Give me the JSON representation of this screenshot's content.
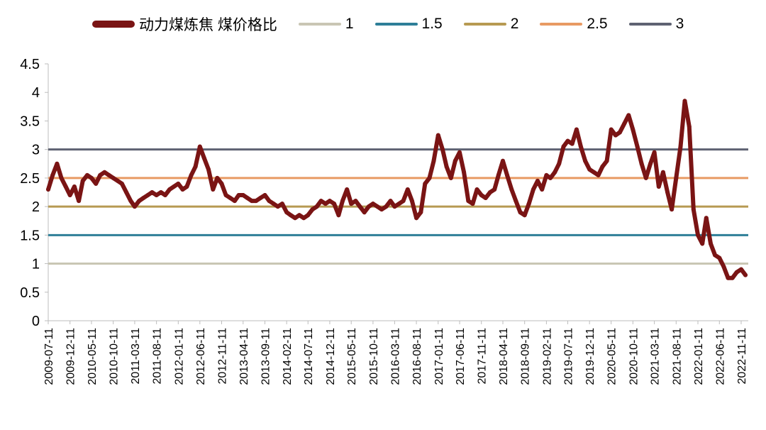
{
  "chart_data": {
    "type": "line",
    "title": "",
    "xlabel": "",
    "ylabel": "",
    "ylim": [
      0,
      4.5
    ],
    "yticks": [
      "0",
      "0.5",
      "1",
      "1.5",
      "2",
      "2.5",
      "3",
      "3.5",
      "4",
      "4.5"
    ],
    "xlim": [
      "2009-07-11",
      "2022-12-31"
    ],
    "xticks": [
      "2009-07-11",
      "2009-12-11",
      "2010-05-11",
      "2010-10-11",
      "2011-03-11",
      "2011-08-11",
      "2012-01-11",
      "2012-06-11",
      "2012-11-11",
      "2013-04-11",
      "2013-09-11",
      "2014-02-11",
      "2014-07-11",
      "2014-12-11",
      "2015-05-11",
      "2015-10-11",
      "2016-03-11",
      "2016-08-11",
      "2017-01-11",
      "2017-06-11",
      "2017-11-11",
      "2018-04-11",
      "2018-09-11",
      "2019-02-11",
      "2019-07-11",
      "2019-12-11",
      "2020-05-11",
      "2020-10-11",
      "2021-03-11",
      "2021-08-11",
      "2022-01-11",
      "2022-06-11",
      "2022-11-11"
    ],
    "grid": false,
    "legend_position": "top",
    "series": [
      {
        "name": "动力煤炼焦 煤价格比",
        "color": "#7a1414",
        "x": [
          "2009-07-11",
          "2009-08-11",
          "2009-09-11",
          "2009-10-11",
          "2009-11-11",
          "2009-12-11",
          "2010-01-11",
          "2010-02-11",
          "2010-03-11",
          "2010-04-11",
          "2010-05-11",
          "2010-06-11",
          "2010-07-11",
          "2010-08-11",
          "2010-09-11",
          "2010-10-11",
          "2010-11-11",
          "2010-12-11",
          "2011-01-11",
          "2011-02-11",
          "2011-03-11",
          "2011-04-11",
          "2011-05-11",
          "2011-06-11",
          "2011-07-11",
          "2011-08-11",
          "2011-09-11",
          "2011-10-11",
          "2011-11-11",
          "2011-12-11",
          "2012-01-11",
          "2012-02-11",
          "2012-03-11",
          "2012-04-11",
          "2012-05-11",
          "2012-06-11",
          "2012-07-11",
          "2012-08-11",
          "2012-09-11",
          "2012-10-11",
          "2012-11-11",
          "2012-12-11",
          "2013-01-11",
          "2013-02-11",
          "2013-03-11",
          "2013-04-11",
          "2013-05-11",
          "2013-06-11",
          "2013-07-11",
          "2013-08-11",
          "2013-09-11",
          "2013-10-11",
          "2013-11-11",
          "2013-12-11",
          "2014-01-11",
          "2014-02-11",
          "2014-03-11",
          "2014-04-11",
          "2014-05-11",
          "2014-06-11",
          "2014-07-11",
          "2014-08-11",
          "2014-09-11",
          "2014-10-11",
          "2014-11-11",
          "2014-12-11",
          "2015-01-11",
          "2015-02-11",
          "2015-03-11",
          "2015-04-11",
          "2015-05-11",
          "2015-06-11",
          "2015-07-11",
          "2015-08-11",
          "2015-09-11",
          "2015-10-11",
          "2015-11-11",
          "2015-12-11",
          "2016-01-11",
          "2016-02-11",
          "2016-03-11",
          "2016-04-11",
          "2016-05-11",
          "2016-06-11",
          "2016-07-11",
          "2016-08-11",
          "2016-09-11",
          "2016-10-11",
          "2016-11-11",
          "2016-12-11",
          "2017-01-11",
          "2017-02-11",
          "2017-03-11",
          "2017-04-11",
          "2017-05-11",
          "2017-06-11",
          "2017-07-11",
          "2017-08-11",
          "2017-09-11",
          "2017-10-11",
          "2017-11-11",
          "2017-12-11",
          "2018-01-11",
          "2018-02-11",
          "2018-03-11",
          "2018-04-11",
          "2018-05-11",
          "2018-06-11",
          "2018-07-11",
          "2018-08-11",
          "2018-09-11",
          "2018-10-11",
          "2018-11-11",
          "2018-12-11",
          "2019-01-11",
          "2019-02-11",
          "2019-03-11",
          "2019-04-11",
          "2019-05-11",
          "2019-06-11",
          "2019-07-11",
          "2019-08-11",
          "2019-09-11",
          "2019-10-11",
          "2019-11-11",
          "2019-12-11",
          "2020-01-11",
          "2020-02-11",
          "2020-03-11",
          "2020-04-11",
          "2020-05-11",
          "2020-06-11",
          "2020-07-11",
          "2020-08-11",
          "2020-09-11",
          "2020-10-11",
          "2020-11-11",
          "2020-12-11",
          "2021-01-11",
          "2021-02-11",
          "2021-03-11",
          "2021-04-11",
          "2021-05-11",
          "2021-06-11",
          "2021-07-11",
          "2021-08-11",
          "2021-09-11",
          "2021-10-11",
          "2021-11-11",
          "2021-12-11",
          "2022-01-11",
          "2022-02-11",
          "2022-03-11",
          "2022-04-11",
          "2022-05-11",
          "2022-06-11",
          "2022-07-11",
          "2022-08-11",
          "2022-09-11",
          "2022-10-11",
          "2022-11-11",
          "2022-12-11"
        ],
        "values": [
          2.3,
          2.55,
          2.75,
          2.5,
          2.35,
          2.2,
          2.35,
          2.1,
          2.45,
          2.55,
          2.5,
          2.4,
          2.55,
          2.6,
          2.55,
          2.5,
          2.45,
          2.4,
          2.25,
          2.1,
          2.0,
          2.1,
          2.15,
          2.2,
          2.25,
          2.2,
          2.25,
          2.2,
          2.3,
          2.35,
          2.4,
          2.3,
          2.35,
          2.55,
          2.7,
          3.05,
          2.85,
          2.65,
          2.3,
          2.5,
          2.4,
          2.2,
          2.15,
          2.1,
          2.2,
          2.2,
          2.15,
          2.1,
          2.1,
          2.15,
          2.2,
          2.1,
          2.05,
          2.0,
          2.05,
          1.9,
          1.85,
          1.8,
          1.85,
          1.8,
          1.85,
          1.95,
          2.0,
          2.1,
          2.05,
          2.1,
          2.05,
          1.85,
          2.1,
          2.3,
          2.05,
          2.1,
          2.0,
          1.9,
          2.0,
          2.05,
          2.0,
          1.95,
          2.0,
          2.1,
          2.0,
          2.05,
          2.1,
          2.3,
          2.1,
          1.8,
          1.9,
          2.4,
          2.5,
          2.8,
          3.25,
          3.0,
          2.7,
          2.5,
          2.8,
          2.95,
          2.6,
          2.1,
          2.05,
          2.3,
          2.2,
          2.15,
          2.25,
          2.3,
          2.55,
          2.8,
          2.55,
          2.3,
          2.1,
          1.9,
          1.85,
          2.05,
          2.3,
          2.45,
          2.3,
          2.55,
          2.5,
          2.6,
          2.75,
          3.05,
          3.15,
          3.1,
          3.35,
          3.05,
          2.8,
          2.65,
          2.6,
          2.55,
          2.7,
          2.8,
          3.35,
          3.25,
          3.3,
          3.45,
          3.6,
          3.35,
          3.05,
          2.75,
          2.5,
          2.75,
          2.95,
          2.35,
          2.6,
          2.25,
          1.95,
          2.5,
          3.05,
          3.85,
          3.4,
          1.95,
          1.5,
          1.35,
          1.8,
          1.35,
          1.15,
          1.1,
          0.95,
          0.75,
          0.75,
          0.85,
          0.9,
          0.8
        ]
      },
      {
        "name": "1",
        "color": "#c9c6b4",
        "constant": 1
      },
      {
        "name": "1.5",
        "color": "#2e7f98",
        "constant": 1.5
      },
      {
        "name": "2",
        "color": "#b79a52",
        "constant": 2
      },
      {
        "name": "2.5",
        "color": "#e89a63",
        "constant": 2.5
      },
      {
        "name": "3",
        "color": "#5e6272",
        "constant": 3
      }
    ]
  }
}
